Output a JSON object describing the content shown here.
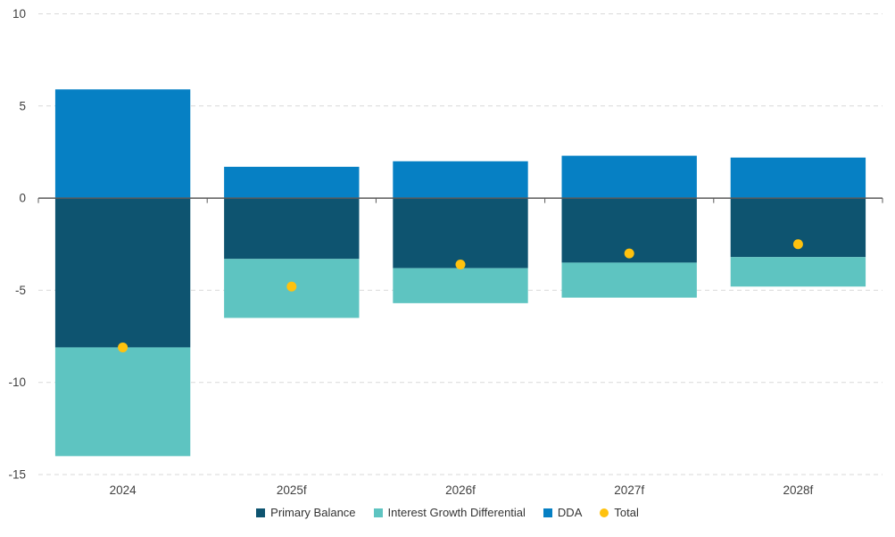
{
  "chart_data": {
    "type": "bar",
    "stacked": true,
    "title": "",
    "xlabel": "",
    "ylabel": "",
    "categories": [
      "2024",
      "2025f",
      "2026f",
      "2027f",
      "2028f"
    ],
    "series": [
      {
        "name": "Primary Balance",
        "color": "#0E5470",
        "values": [
          -8.1,
          -3.3,
          -3.8,
          -3.5,
          -3.2
        ]
      },
      {
        "name": "Interest Growth Differential",
        "color": "#5EC4C1",
        "values": [
          -5.9,
          -3.2,
          -1.9,
          -1.9,
          -1.6
        ]
      },
      {
        "name": "DDA",
        "color": "#0680C4",
        "values": [
          5.9,
          1.7,
          2.0,
          2.3,
          2.2
        ]
      }
    ],
    "point_series": [
      {
        "name": "Total",
        "color": "#FFC20E",
        "marker": "circle",
        "values": [
          -8.1,
          -4.8,
          -3.6,
          -3.0,
          -2.5
        ]
      }
    ],
    "ylim": [
      -15,
      10
    ],
    "yticks": [
      10,
      5,
      0,
      -5,
      -10,
      -15
    ],
    "grid": "horizontal-dashed",
    "legend_position": "bottom-center"
  },
  "legend": {
    "items": [
      {
        "label": "Primary Balance",
        "marker": "square",
        "color": "#0E5470"
      },
      {
        "label": "Interest Growth Differential",
        "marker": "square",
        "color": "#5EC4C1"
      },
      {
        "label": "DDA",
        "marker": "square",
        "color": "#0680C4"
      },
      {
        "label": "Total",
        "marker": "circle",
        "color": "#FFC20E"
      }
    ]
  },
  "colors": {
    "axis": "#595959",
    "gridline": "#D9D9D9",
    "tick_label": "#404040",
    "background": "#FFFFFF"
  }
}
